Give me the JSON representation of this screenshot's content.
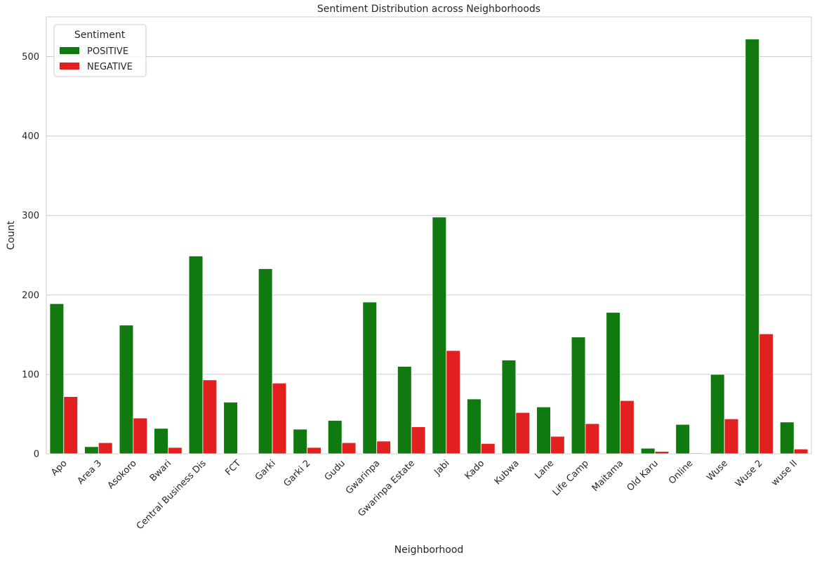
{
  "chart_data": {
    "type": "bar",
    "title": "Sentiment Distribution across Neighborhoods",
    "xlabel": "Neighborhood",
    "ylabel": "Count",
    "ylim": [
      0,
      550
    ],
    "yticks": [
      0,
      100,
      200,
      300,
      400,
      500
    ],
    "grid": "horizontal",
    "legend": {
      "title": "Sentiment",
      "placement": "top-left"
    },
    "categories": [
      "Apo",
      "Area 3",
      "Asokoro",
      "Bwari",
      "Central Business Dis",
      "FCT",
      "Garki",
      "Garki 2",
      "Gudu",
      "Gwarinpa",
      "Gwarinpa Estate",
      "Jabi",
      "Kado",
      "Kubwa",
      "Lane",
      "Life Camp",
      "Maitama",
      "Old Karu",
      "Online",
      "Wuse",
      "Wuse 2",
      "wuse II"
    ],
    "series": [
      {
        "name": "POSITIVE",
        "color": "#107a10",
        "values": [
          189,
          9,
          162,
          32,
          249,
          65,
          233,
          31,
          42,
          191,
          110,
          298,
          69,
          118,
          59,
          147,
          178,
          7,
          37,
          100,
          522,
          40
        ]
      },
      {
        "name": "NEGATIVE",
        "color": "#e32020",
        "values": [
          72,
          14,
          45,
          8,
          93,
          0,
          89,
          8,
          14,
          16,
          34,
          130,
          13,
          52,
          22,
          38,
          67,
          3,
          1,
          44,
          151,
          6
        ]
      }
    ]
  }
}
